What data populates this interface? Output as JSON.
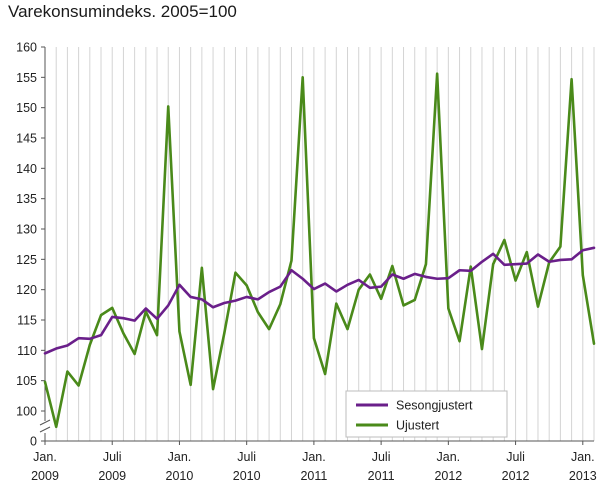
{
  "chart_data": {
    "type": "line",
    "title": "Varekonsumindeks. 2005=100",
    "xlabel": "",
    "ylabel": "",
    "ylim": [
      100,
      160
    ],
    "yticks": [
      100,
      105,
      110,
      115,
      120,
      125,
      130,
      135,
      140,
      145,
      150,
      155,
      160
    ],
    "y_break_label": "0",
    "y_axis_break": true,
    "grid": "vertical",
    "legend_position": "bottom-right",
    "x_labels": [
      {
        "index": 0,
        "line1": "Jan.",
        "line2": "2009"
      },
      {
        "index": 6,
        "line1": "Juli",
        "line2": "2009"
      },
      {
        "index": 12,
        "line1": "Jan.",
        "line2": "2010"
      },
      {
        "index": 18,
        "line1": "Juli",
        "line2": "2010"
      },
      {
        "index": 24,
        "line1": "Jan.",
        "line2": "2011"
      },
      {
        "index": 30,
        "line1": "Juli",
        "line2": "2011"
      },
      {
        "index": 36,
        "line1": "Jan.",
        "line2": "2012"
      },
      {
        "index": 42,
        "line1": "Juli",
        "line2": "2012"
      },
      {
        "index": 48,
        "line1": "Jan.",
        "line2": "2013"
      }
    ],
    "n_points": 50,
    "series": [
      {
        "name": "Sesongjustert",
        "color": "#6a1f8a",
        "values": [
          109.5,
          110.3,
          110.8,
          112.0,
          111.9,
          112.5,
          115.5,
          115.3,
          114.9,
          116.9,
          115.2,
          117.4,
          120.8,
          118.8,
          118.4,
          117.1,
          117.8,
          118.2,
          118.8,
          118.4,
          119.6,
          120.5,
          123.2,
          121.8,
          120.1,
          121.0,
          119.7,
          120.8,
          121.6,
          120.3,
          120.5,
          122.5,
          121.8,
          122.6,
          122.1,
          121.8,
          121.9,
          123.2,
          123.1,
          124.6,
          125.9,
          124.1,
          124.2,
          124.3,
          125.8,
          124.6,
          124.9,
          125.0,
          126.5,
          126.9
        ]
      },
      {
        "name": "Ujustert",
        "color": "#4a8a1a",
        "values": [
          104.8,
          96.9,
          106.5,
          104.2,
          110.9,
          115.8,
          117.0,
          112.8,
          109.4,
          116.4,
          112.5,
          150.2,
          113.1,
          104.3,
          123.6,
          103.6,
          112.8,
          122.8,
          120.7,
          116.3,
          113.5,
          117.6,
          124.8,
          155.0,
          112.0,
          106.1,
          117.7,
          113.5,
          120.0,
          122.5,
          118.5,
          123.9,
          117.4,
          118.3,
          124.2,
          155.6,
          116.9,
          111.5,
          123.8,
          110.2,
          124.2,
          128.2,
          121.5,
          126.2,
          117.2,
          124.5,
          127.1,
          154.7,
          122.4,
          111.1
        ]
      }
    ]
  }
}
